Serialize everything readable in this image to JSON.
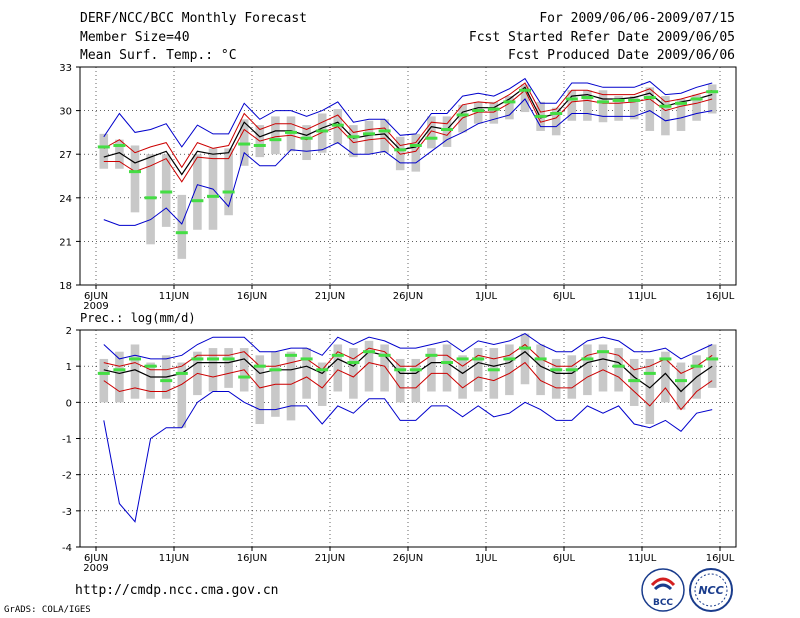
{
  "header": {
    "title": "DERF/NCC/BCC Monthly Forecast",
    "member_size": "Member Size=40",
    "variable_temp": "Mean Surf. Temp.: °C",
    "for_period": "For 2009/06/06-2009/07/15",
    "started_refer": "Fcst Started Refer Date 2009/06/05",
    "produced": "Fcst Produced Date 2009/06/06"
  },
  "footer": {
    "url": "http://cmdp.ncc.cma.gov.cn",
    "grads": "GrADS: COLA/IGES",
    "logo_bcc": "BCC",
    "logo_ncc": "NCC"
  },
  "x_ticks": [
    "6JUN",
    "11JUN",
    "16JUN",
    "21JUN",
    "26JUN",
    "1JUL",
    "6JUL",
    "11JUL",
    "16JUL"
  ],
  "x_year": "2009",
  "colors": {
    "envelope": "#0000cc",
    "mean_band": "#cc0000",
    "ensemble_mean": "#000000",
    "observed": "#44dd44",
    "spread_bar": "#c8c8c8"
  },
  "chart_data": [
    {
      "type": "line",
      "title": "Mean Surf. Temp.: °C",
      "ylim": [
        18,
        33
      ],
      "yticks": [
        "18",
        "21",
        "24",
        "27",
        "30",
        "33"
      ],
      "x_days": 40,
      "series": [
        {
          "name": "max",
          "values": [
            28.2,
            29.8,
            28.5,
            28.7,
            29.1,
            27.5,
            29.0,
            28.4,
            28.4,
            30.5,
            29.4,
            30.0,
            30.0,
            29.6,
            30.0,
            30.6,
            29.2,
            29.4,
            29.4,
            28.3,
            28.4,
            29.8,
            29.8,
            31.0,
            31.2,
            31.0,
            31.5,
            32.2,
            30.5,
            30.5,
            31.9,
            31.9,
            31.6,
            31.6,
            31.6,
            32.0,
            31.1,
            31.2,
            31.6,
            31.9
          ]
        },
        {
          "name": "upper",
          "values": [
            27.4,
            28.0,
            27.1,
            27.5,
            27.8,
            26.1,
            27.8,
            27.4,
            27.6,
            29.8,
            28.7,
            29.1,
            29.1,
            28.7,
            29.2,
            29.7,
            28.5,
            28.7,
            28.8,
            27.6,
            27.8,
            29.2,
            29.1,
            30.4,
            30.6,
            30.5,
            31.1,
            31.9,
            29.9,
            30.1,
            31.4,
            31.4,
            31.1,
            31.1,
            31.1,
            31.5,
            30.6,
            30.8,
            31.1,
            31.4
          ]
        },
        {
          "name": "mean",
          "values": [
            26.8,
            27.1,
            26.4,
            26.8,
            27.2,
            25.6,
            27.2,
            27.0,
            27.1,
            29.2,
            28.2,
            28.6,
            28.6,
            28.3,
            28.8,
            29.2,
            28.1,
            28.3,
            28.4,
            27.3,
            27.5,
            28.9,
            28.7,
            29.9,
            30.2,
            30.2,
            30.8,
            31.6,
            29.5,
            29.8,
            31.0,
            31.1,
            30.8,
            30.8,
            30.9,
            31.2,
            30.3,
            30.6,
            30.8,
            31.1
          ]
        },
        {
          "name": "lower",
          "values": [
            26.5,
            26.5,
            25.8,
            26.2,
            26.7,
            25.1,
            26.8,
            26.7,
            26.7,
            28.7,
            27.9,
            28.2,
            28.3,
            28.0,
            28.5,
            28.9,
            27.8,
            28.0,
            28.1,
            27.0,
            27.2,
            28.6,
            28.3,
            29.5,
            29.9,
            29.9,
            30.5,
            31.4,
            29.2,
            29.5,
            30.6,
            30.7,
            30.5,
            30.5,
            30.6,
            30.8,
            30.0,
            30.3,
            30.5,
            30.8
          ]
        },
        {
          "name": "min",
          "values": [
            22.5,
            22.1,
            22.1,
            22.5,
            23.3,
            22.2,
            24.9,
            24.6,
            23.4,
            27.1,
            26.2,
            26.2,
            27.3,
            27.2,
            27.3,
            27.8,
            27.0,
            27.0,
            27.2,
            26.4,
            26.4,
            27.2,
            28.0,
            28.5,
            29.1,
            29.4,
            29.7,
            30.8,
            28.9,
            28.9,
            29.8,
            29.8,
            29.6,
            29.6,
            29.6,
            30.0,
            29.3,
            29.5,
            29.8,
            30.0
          ]
        },
        {
          "name": "observed",
          "values": [
            27.5,
            27.6,
            25.8,
            24.0,
            24.4,
            21.6,
            23.8,
            24.1,
            24.4,
            27.7,
            27.6,
            28.0,
            28.5,
            28.1,
            28.6,
            29.0,
            28.2,
            28.4,
            28.6,
            27.3,
            27.6,
            28.1,
            28.7,
            29.7,
            30.0,
            30.1,
            30.6,
            31.4,
            29.6,
            29.8,
            30.8,
            30.9,
            30.6,
            30.7,
            30.7,
            30.9,
            30.3,
            30.5,
            30.8,
            31.3
          ]
        },
        {
          "name": "spread_low",
          "values": [
            26.0,
            26.0,
            23.0,
            20.8,
            22.0,
            19.8,
            21.8,
            21.8,
            22.8,
            26.2,
            26.8,
            27.0,
            27.2,
            26.6,
            27.1,
            27.7,
            26.8,
            27.0,
            27.1,
            25.9,
            25.8,
            27.4,
            27.5,
            28.5,
            29.1,
            29.1,
            29.4,
            29.9,
            28.6,
            28.3,
            29.3,
            29.3,
            29.2,
            29.3,
            29.4,
            28.6,
            28.3,
            28.6,
            29.3,
            29.8
          ]
        },
        {
          "name": "spread_high",
          "values": [
            28.4,
            28.0,
            27.6,
            27.0,
            27.0,
            24.2,
            27.0,
            27.4,
            27.4,
            29.4,
            29.0,
            29.6,
            29.6,
            29.0,
            29.8,
            30.1,
            29.0,
            29.3,
            29.4,
            28.2,
            28.4,
            29.6,
            29.6,
            30.4,
            30.6,
            30.6,
            31.0,
            31.8,
            30.6,
            30.2,
            31.4,
            31.4,
            31.4,
            31.0,
            31.0,
            31.6,
            31.0,
            30.8,
            31.1,
            31.8
          ]
        }
      ]
    },
    {
      "type": "line",
      "title": "Prec.: log(mm/d)",
      "ylim": [
        -4,
        2
      ],
      "yticks": [
        "-4",
        "-3",
        "-2",
        "-1",
        "0",
        "1",
        "2"
      ],
      "x_days": 40,
      "series": [
        {
          "name": "max",
          "values": [
            1.6,
            1.2,
            1.3,
            1.2,
            1.2,
            1.3,
            1.6,
            1.8,
            1.8,
            1.8,
            1.4,
            1.4,
            1.5,
            1.5,
            1.3,
            1.8,
            1.6,
            1.8,
            1.7,
            1.5,
            1.5,
            1.6,
            1.7,
            1.4,
            1.7,
            1.6,
            1.7,
            1.9,
            1.6,
            1.4,
            1.4,
            1.7,
            1.8,
            1.7,
            1.4,
            1.4,
            1.5,
            1.2,
            1.4,
            1.6
          ]
        },
        {
          "name": "upper",
          "values": [
            1.1,
            1.0,
            1.1,
            0.9,
            0.9,
            1.0,
            1.3,
            1.3,
            1.3,
            1.4,
            1.0,
            1.0,
            1.1,
            1.2,
            0.9,
            1.4,
            1.2,
            1.5,
            1.4,
            1.0,
            1.0,
            1.3,
            1.3,
            1.0,
            1.3,
            1.2,
            1.3,
            1.6,
            1.2,
            1.0,
            1.0,
            1.3,
            1.4,
            1.3,
            0.9,
            1.0,
            1.2,
            0.8,
            1.0,
            1.3
          ]
        },
        {
          "name": "mean",
          "values": [
            0.9,
            0.8,
            0.9,
            0.7,
            0.7,
            0.8,
            1.1,
            1.1,
            1.1,
            1.2,
            0.8,
            0.9,
            0.9,
            1.0,
            0.8,
            1.2,
            1.0,
            1.4,
            1.3,
            0.8,
            0.8,
            1.1,
            1.1,
            0.8,
            1.1,
            1.0,
            1.1,
            1.4,
            1.0,
            0.8,
            0.8,
            1.1,
            1.2,
            1.1,
            0.7,
            0.4,
            0.8,
            0.3,
            0.7,
            1.0
          ]
        },
        {
          "name": "lower",
          "values": [
            0.6,
            0.3,
            0.4,
            0.3,
            0.3,
            0.5,
            0.8,
            0.7,
            0.8,
            0.9,
            0.4,
            0.5,
            0.5,
            0.7,
            0.4,
            0.9,
            0.7,
            1.1,
            1.0,
            0.4,
            0.4,
            0.8,
            0.8,
            0.4,
            0.7,
            0.6,
            0.8,
            1.1,
            0.6,
            0.4,
            0.4,
            0.7,
            0.9,
            0.7,
            0.3,
            -0.1,
            0.4,
            -0.2,
            0.3,
            0.6
          ]
        },
        {
          "name": "min",
          "values": [
            -0.5,
            -2.8,
            -3.3,
            -1.0,
            -0.7,
            -0.7,
            0.0,
            0.3,
            0.3,
            0.0,
            -0.2,
            -0.2,
            -0.1,
            -0.1,
            -0.6,
            -0.1,
            -0.3,
            0.1,
            0.1,
            -0.5,
            -0.5,
            -0.1,
            -0.1,
            -0.4,
            -0.1,
            -0.4,
            -0.3,
            0.0,
            -0.2,
            -0.5,
            -0.5,
            -0.1,
            -0.3,
            -0.1,
            -0.6,
            -0.7,
            -0.5,
            -0.8,
            -0.3,
            -0.2
          ]
        },
        {
          "name": "observed",
          "values": [
            0.8,
            0.9,
            1.2,
            1.0,
            0.6,
            0.8,
            1.2,
            1.2,
            1.2,
            0.7,
            1.0,
            0.9,
            1.3,
            1.2,
            0.9,
            1.3,
            1.1,
            1.4,
            1.3,
            0.9,
            0.9,
            1.3,
            1.1,
            1.2,
            1.2,
            0.9,
            1.2,
            1.5,
            1.2,
            0.9,
            0.9,
            1.2,
            1.4,
            1.0,
            0.6,
            0.8,
            1.2,
            0.6,
            1.0,
            1.2
          ]
        },
        {
          "name": "spread_low",
          "values": [
            0.0,
            0.0,
            0.1,
            0.1,
            0.1,
            -0.7,
            0.2,
            0.3,
            0.4,
            0.3,
            -0.6,
            -0.4,
            -0.5,
            0.1,
            -0.1,
            0.3,
            0.1,
            0.3,
            0.3,
            0.0,
            0.0,
            0.3,
            0.3,
            0.1,
            0.3,
            0.1,
            0.2,
            0.5,
            0.2,
            0.1,
            0.1,
            0.2,
            0.3,
            0.3,
            -0.1,
            -0.6,
            0.0,
            -0.2,
            0.1,
            0.4
          ]
        },
        {
          "name": "spread_high",
          "values": [
            1.2,
            1.4,
            1.6,
            1.1,
            1.3,
            1.1,
            1.4,
            1.5,
            1.5,
            1.5,
            1.3,
            1.4,
            1.4,
            1.5,
            1.1,
            1.6,
            1.5,
            1.7,
            1.6,
            1.2,
            1.2,
            1.5,
            1.6,
            1.3,
            1.5,
            1.5,
            1.6,
            1.9,
            1.6,
            1.2,
            1.3,
            1.6,
            1.6,
            1.5,
            1.2,
            1.2,
            1.4,
            1.1,
            1.3,
            1.6
          ]
        }
      ]
    }
  ]
}
